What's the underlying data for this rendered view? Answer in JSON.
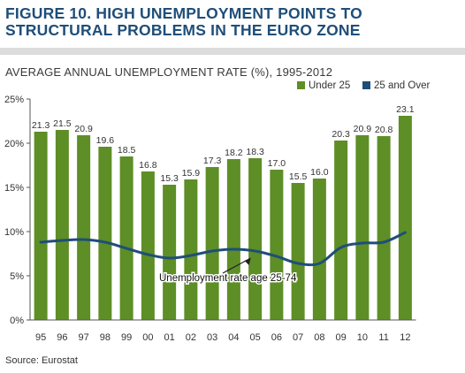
{
  "title": "FIGURE 10. HIGH UNEMPLOYMENT POINTS TO STRUCTURAL PROBLEMS IN THE EURO ZONE",
  "subtitle": "AVERAGE ANNUAL UNEMPLOYMENT RATE (%), 1995-2012",
  "source": "Source: Eurostat",
  "colors": {
    "bar": "#5e8e26",
    "line": "#1f4e79",
    "title": "#1f4e79",
    "rule": "#dcdcdc"
  },
  "chart_data": {
    "type": "bar",
    "categories": [
      "95",
      "96",
      "97",
      "98",
      "99",
      "00",
      "01",
      "02",
      "03",
      "04",
      "05",
      "06",
      "07",
      "08",
      "09",
      "10",
      "11",
      "12"
    ],
    "series": [
      {
        "name": "Under 25",
        "type": "bar",
        "values": [
          21.3,
          21.5,
          20.9,
          19.6,
          18.5,
          16.8,
          15.3,
          15.9,
          17.3,
          18.2,
          18.3,
          17.0,
          15.5,
          16.0,
          20.3,
          20.9,
          20.8,
          23.1
        ]
      },
      {
        "name": "25 and Over",
        "type": "line",
        "values": [
          8.8,
          9.0,
          9.1,
          8.8,
          8.1,
          7.4,
          7.0,
          7.3,
          7.8,
          8.0,
          7.8,
          7.2,
          6.4,
          6.4,
          8.2,
          8.7,
          8.8,
          9.9
        ]
      }
    ],
    "yticks": [
      "0%",
      "5%",
      "10%",
      "15%",
      "20%",
      "25%"
    ],
    "ylim": [
      0,
      25
    ],
    "legend_position": "top-right",
    "annotation": "Unemployment rate age 25-74",
    "grid": false
  }
}
